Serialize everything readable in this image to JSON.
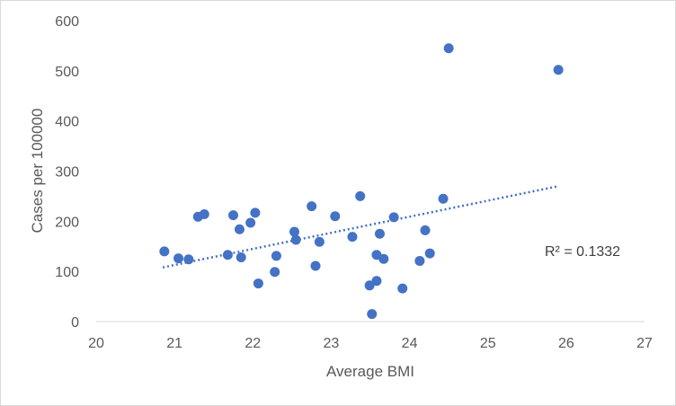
{
  "chart_data": {
    "type": "scatter",
    "xlabel": "Average BMI",
    "ylabel": "Cases per 100000",
    "xlim": [
      20,
      27
    ],
    "ylim": [
      0,
      600
    ],
    "x_ticks": [
      20,
      21,
      22,
      23,
      24,
      25,
      26,
      27
    ],
    "y_ticks": [
      0,
      100,
      200,
      300,
      400,
      500,
      600
    ],
    "grid": false,
    "legend": "none",
    "marker_color": "#4472c4",
    "trendline": {
      "type": "linear",
      "style": "dotted",
      "x": [
        20.85,
        25.9
      ],
      "y": [
        108,
        270
      ],
      "r2_label": "R² = 0.1332"
    },
    "points": [
      {
        "x": 20.87,
        "y": 140
      },
      {
        "x": 21.05,
        "y": 126
      },
      {
        "x": 21.18,
        "y": 124
      },
      {
        "x": 21.3,
        "y": 209
      },
      {
        "x": 21.38,
        "y": 214
      },
      {
        "x": 21.68,
        "y": 133
      },
      {
        "x": 21.75,
        "y": 212
      },
      {
        "x": 21.83,
        "y": 184
      },
      {
        "x": 21.85,
        "y": 128
      },
      {
        "x": 21.97,
        "y": 197
      },
      {
        "x": 22.03,
        "y": 217
      },
      {
        "x": 22.07,
        "y": 76
      },
      {
        "x": 22.28,
        "y": 99
      },
      {
        "x": 22.3,
        "y": 131
      },
      {
        "x": 22.53,
        "y": 179
      },
      {
        "x": 22.55,
        "y": 163
      },
      {
        "x": 22.75,
        "y": 230
      },
      {
        "x": 22.8,
        "y": 111
      },
      {
        "x": 22.85,
        "y": 159
      },
      {
        "x": 23.05,
        "y": 210
      },
      {
        "x": 23.27,
        "y": 169
      },
      {
        "x": 23.37,
        "y": 250
      },
      {
        "x": 23.49,
        "y": 72
      },
      {
        "x": 23.52,
        "y": 15
      },
      {
        "x": 23.58,
        "y": 81
      },
      {
        "x": 23.58,
        "y": 133
      },
      {
        "x": 23.62,
        "y": 175
      },
      {
        "x": 23.67,
        "y": 125
      },
      {
        "x": 23.8,
        "y": 208
      },
      {
        "x": 23.91,
        "y": 66
      },
      {
        "x": 24.13,
        "y": 121
      },
      {
        "x": 24.2,
        "y": 182
      },
      {
        "x": 24.26,
        "y": 136
      },
      {
        "x": 24.43,
        "y": 245
      },
      {
        "x": 24.5,
        "y": 545
      },
      {
        "x": 25.9,
        "y": 502
      }
    ]
  }
}
